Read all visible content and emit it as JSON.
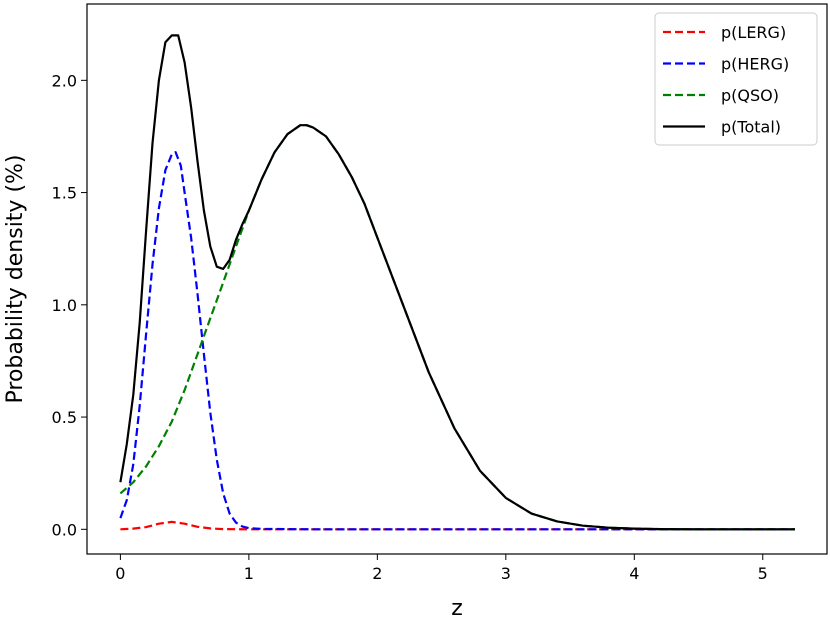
{
  "chart_data": {
    "type": "line",
    "title": "",
    "xlabel": "z",
    "ylabel": "Probability density (%)",
    "xlim": [
      -0.26,
      5.5
    ],
    "ylim": [
      -0.11,
      2.34
    ],
    "xticks": [
      0,
      1,
      2,
      3,
      4,
      5
    ],
    "xtick_labels": [
      "0",
      "1",
      "2",
      "3",
      "4",
      "5"
    ],
    "yticks": [
      0.0,
      0.5,
      1.0,
      1.5,
      2.0
    ],
    "ytick_labels": [
      "0.0",
      "0.5",
      "1.0",
      "1.5",
      "2.0"
    ],
    "grid": false,
    "legend_position": "top-right",
    "series": [
      {
        "name": "p(LERG)",
        "color": "#ff0000",
        "style": "dashed",
        "x": [
          0.0,
          0.1,
          0.2,
          0.3,
          0.4,
          0.5,
          0.6,
          0.7,
          0.8,
          1.0,
          1.5,
          2.0,
          3.0,
          4.0,
          5.25
        ],
        "y": [
          0.0,
          0.003,
          0.01,
          0.025,
          0.033,
          0.025,
          0.011,
          0.004,
          0.001,
          0.0,
          0.0,
          0.0,
          0.0,
          0.0,
          0.0
        ]
      },
      {
        "name": "p(HERG)",
        "color": "#0000ff",
        "style": "dashed",
        "x": [
          0.0,
          0.05,
          0.1,
          0.15,
          0.2,
          0.25,
          0.3,
          0.35,
          0.4,
          0.43,
          0.47,
          0.5,
          0.55,
          0.6,
          0.65,
          0.7,
          0.75,
          0.8,
          0.85,
          0.9,
          0.95,
          1.0,
          1.1,
          1.5,
          2.0,
          3.0,
          4.0,
          5.25
        ],
        "y": [
          0.05,
          0.13,
          0.29,
          0.55,
          0.87,
          1.18,
          1.43,
          1.6,
          1.67,
          1.68,
          1.62,
          1.5,
          1.3,
          1.05,
          0.78,
          0.52,
          0.31,
          0.16,
          0.07,
          0.03,
          0.012,
          0.005,
          0.002,
          0.0,
          0.0,
          0.0,
          0.0,
          0.0
        ]
      },
      {
        "name": "p(QSO)",
        "color": "#008000",
        "style": "dashed",
        "x": [
          0.0,
          0.1,
          0.2,
          0.3,
          0.4,
          0.5,
          0.6,
          0.7,
          0.8,
          0.9,
          1.0,
          1.1,
          1.2,
          1.3,
          1.4,
          1.45,
          1.5,
          1.6,
          1.7,
          1.8,
          1.9,
          2.0,
          2.2,
          2.4,
          2.6,
          2.8,
          3.0,
          3.2,
          3.4,
          3.6,
          3.8,
          4.0,
          4.2,
          4.5,
          5.0,
          5.25
        ],
        "y": [
          0.16,
          0.21,
          0.28,
          0.37,
          0.48,
          0.62,
          0.78,
          0.94,
          1.1,
          1.26,
          1.42,
          1.56,
          1.68,
          1.76,
          1.8,
          1.8,
          1.79,
          1.75,
          1.67,
          1.57,
          1.45,
          1.3,
          1.0,
          0.7,
          0.45,
          0.26,
          0.14,
          0.07,
          0.035,
          0.016,
          0.007,
          0.003,
          0.001,
          0.0,
          0.0,
          0.0
        ]
      },
      {
        "name": "p(Total)",
        "color": "#000000",
        "style": "solid",
        "x": [
          0.0,
          0.05,
          0.1,
          0.15,
          0.2,
          0.25,
          0.3,
          0.35,
          0.4,
          0.45,
          0.5,
          0.55,
          0.6,
          0.65,
          0.7,
          0.75,
          0.8,
          0.85,
          0.9,
          0.95,
          1.0,
          1.1,
          1.2,
          1.3,
          1.4,
          1.45,
          1.5,
          1.6,
          1.7,
          1.8,
          1.9,
          2.0,
          2.2,
          2.4,
          2.6,
          2.8,
          3.0,
          3.2,
          3.4,
          3.6,
          3.8,
          4.0,
          4.2,
          4.5,
          5.0,
          5.25
        ],
        "y": [
          0.21,
          0.38,
          0.6,
          0.92,
          1.33,
          1.72,
          2.0,
          2.17,
          2.2,
          2.2,
          2.08,
          1.88,
          1.64,
          1.42,
          1.26,
          1.17,
          1.16,
          1.2,
          1.29,
          1.36,
          1.42,
          1.56,
          1.68,
          1.76,
          1.8,
          1.8,
          1.79,
          1.75,
          1.67,
          1.57,
          1.45,
          1.3,
          1.0,
          0.7,
          0.45,
          0.26,
          0.14,
          0.07,
          0.035,
          0.016,
          0.007,
          0.003,
          0.001,
          0.0,
          0.0,
          0.0
        ]
      }
    ]
  }
}
